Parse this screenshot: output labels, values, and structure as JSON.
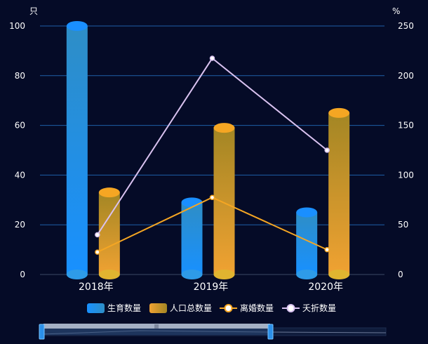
{
  "chart_data": {
    "type": "bar",
    "categories": [
      "2018年",
      "2019年",
      "2020年"
    ],
    "left_axis": {
      "unit": "只",
      "min": 0,
      "max": 100,
      "ticks": [
        0,
        20,
        40,
        60,
        80,
        100
      ]
    },
    "right_axis": {
      "unit": "%",
      "min": 0,
      "max": 250,
      "ticks": [
        0,
        50,
        100,
        150,
        200,
        250
      ]
    },
    "series": [
      {
        "name": "生育数量",
        "kind": "cylinder-bar",
        "axis": "left",
        "values": [
          100,
          29,
          25
        ]
      },
      {
        "name": "人口总数量",
        "kind": "cylinder-bar",
        "axis": "left",
        "values": [
          33,
          59,
          65
        ]
      },
      {
        "name": "离婚数量",
        "kind": "line",
        "axis": "left",
        "values": [
          9,
          31,
          10
        ]
      },
      {
        "name": "夭折数量",
        "kind": "line",
        "axis": "left",
        "values": [
          16,
          87,
          50
        ]
      }
    ],
    "grid": true,
    "legend_position": "bottom",
    "colors": {
      "bar1_top": "#1a8fff",
      "bar1_body_top": "#2e8ec6",
      "bar1_body_bottom": "#1890ff",
      "bar2_top": "#f5a623",
      "bar2_body_top": "#a38624",
      "bar2_body_bottom": "#f0a232",
      "line1": "#f5a623",
      "line2": "#d9c2f0",
      "grid": "#1e5fa8"
    },
    "data_zoom": {
      "range_start": 0,
      "range_end": 1,
      "handle_label": "|||"
    }
  }
}
